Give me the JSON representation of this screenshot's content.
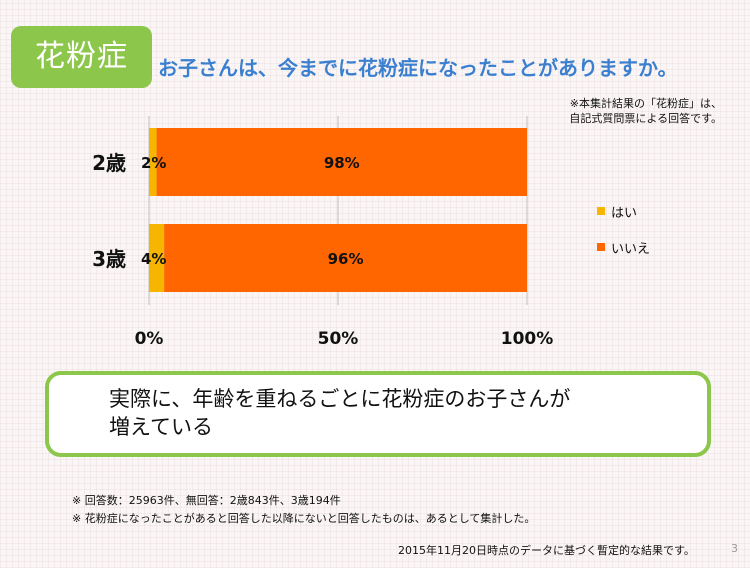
{
  "badge": {
    "label": "花粉症"
  },
  "question": "お子さんは、今までに花粉症になったことがありますか。",
  "note_top": [
    "※本集計結果の「花粉症」は、",
    "自記式質問票による回答です。"
  ],
  "callout": [
    "実際に、年齢を重ねるごとに花粉症のお子さんが",
    "増えている"
  ],
  "notes_bottom": [
    "※ 回答数：25963件、無回答：2歳843件、3歳194件",
    "※ 花粉症になったことがあると回答した以降にないと回答したものは、あるとして集計した。"
  ],
  "footer": "2015年11月20日時点のデータに基づく暫定的な結果です。",
  "page_number": "3",
  "colors": {
    "yes": "#f7b500",
    "no": "#ff6600",
    "accent": "#8cc64a",
    "question": "#3a7fd0"
  },
  "chart_data": {
    "type": "bar",
    "orientation": "horizontal",
    "stacked": true,
    "percent": true,
    "categories": [
      "2歳",
      "3歳"
    ],
    "series": [
      {
        "name": "はい",
        "values": [
          2,
          4
        ],
        "labels": [
          "2%",
          "4%"
        ],
        "color": "#f7b500"
      },
      {
        "name": "いいえ",
        "values": [
          98,
          96
        ],
        "labels": [
          "98%",
          "96%"
        ],
        "color": "#ff6600"
      }
    ],
    "xticks": [
      "0%",
      "50%",
      "100%"
    ],
    "xlim": [
      0,
      100
    ],
    "legend_position": "right",
    "grid": true
  }
}
